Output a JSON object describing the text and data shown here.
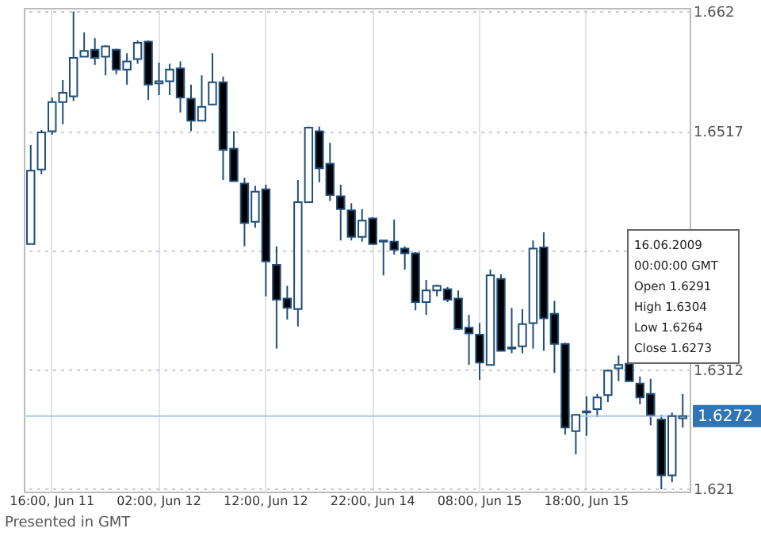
{
  "chart_data": {
    "type": "candlestick",
    "categories": [
      null,
      null,
      "16:00, Jun 11",
      null,
      null,
      null,
      null,
      null,
      null,
      null,
      null,
      null,
      "02:00, Jun 12",
      null,
      null,
      null,
      null,
      null,
      null,
      null,
      null,
      null,
      "12:00, Jun 12",
      null,
      null,
      null,
      null,
      null,
      null,
      null,
      null,
      null,
      "22:00, Jun 14",
      null,
      null,
      null,
      null,
      null,
      null,
      null,
      null,
      null,
      "08:00, Jun 15",
      null,
      null,
      null,
      null,
      null,
      null,
      null,
      null,
      null,
      "18:00, Jun 15",
      null,
      null,
      null,
      null,
      null,
      null,
      null,
      null,
      null
    ],
    "ohlc": [
      [
        1.642,
        1.6505,
        1.642,
        1.6483
      ],
      [
        1.6484,
        1.6518,
        1.648,
        1.6516
      ],
      [
        1.6517,
        1.6546,
        1.6514,
        1.6542
      ],
      [
        1.6542,
        1.6561,
        1.6523,
        1.655
      ],
      [
        1.6547,
        1.662,
        1.6543,
        1.658
      ],
      [
        1.6581,
        1.6602,
        1.6581,
        1.6586
      ],
      [
        1.6587,
        1.6597,
        1.6574,
        1.658
      ],
      [
        1.6581,
        1.6591,
        1.6565,
        1.659
      ],
      [
        1.6587,
        1.6588,
        1.6566,
        1.657
      ],
      [
        1.657,
        1.6584,
        1.6557,
        1.6577
      ],
      [
        1.6579,
        1.6595,
        1.6575,
        1.6593
      ],
      [
        1.6594,
        1.6595,
        1.6544,
        1.6557
      ],
      [
        1.6558,
        1.6576,
        1.6548,
        1.656
      ],
      [
        1.656,
        1.6575,
        1.6548,
        1.657
      ],
      [
        1.6571,
        1.6577,
        1.6533,
        1.6546
      ],
      [
        1.6545,
        1.6557,
        1.6517,
        1.6526
      ],
      [
        1.6526,
        1.6565,
        1.6526,
        1.6538
      ],
      [
        1.654,
        1.6584,
        1.654,
        1.6559
      ],
      [
        1.6559,
        1.6564,
        1.6475,
        1.6501
      ],
      [
        1.6502,
        1.6517,
        1.6474,
        1.6474
      ],
      [
        1.6472,
        1.6477,
        1.6418,
        1.6438
      ],
      [
        1.6439,
        1.647,
        1.6434,
        1.6465
      ],
      [
        1.6467,
        1.6471,
        1.6375,
        1.6405
      ],
      [
        1.6402,
        1.6418,
        1.633,
        1.6372
      ],
      [
        1.6373,
        1.6384,
        1.6355,
        1.6365
      ],
      [
        1.6364,
        1.6475,
        1.6349,
        1.6456
      ],
      [
        1.6456,
        1.6521,
        1.6456,
        1.652
      ],
      [
        1.6517,
        1.6521,
        1.6473,
        1.6485
      ],
      [
        1.6489,
        1.6507,
        1.6457,
        1.6462
      ],
      [
        1.6461,
        1.6471,
        1.6423,
        1.645
      ],
      [
        1.6449,
        1.6455,
        1.6423,
        1.6426
      ],
      [
        1.6426,
        1.645,
        1.6422,
        1.644
      ],
      [
        1.6442,
        1.6443,
        1.642,
        1.642
      ],
      [
        1.6423,
        1.6423,
        1.6393,
        1.6422
      ],
      [
        1.6422,
        1.6441,
        1.6411,
        1.6415
      ],
      [
        1.6416,
        1.6418,
        1.6398,
        1.6412
      ],
      [
        1.6412,
        1.6413,
        1.6363,
        1.637
      ],
      [
        1.637,
        1.6389,
        1.6359,
        1.638
      ],
      [
        1.638,
        1.6385,
        1.6375,
        1.6384
      ],
      [
        1.6381,
        1.6383,
        1.637,
        1.6372
      ],
      [
        1.6373,
        1.638,
        1.6346,
        1.6347
      ],
      [
        1.6348,
        1.6359,
        1.6316,
        1.6343
      ],
      [
        1.6342,
        1.6352,
        1.6303,
        1.6318
      ],
      [
        1.6316,
        1.6398,
        1.6316,
        1.6393
      ],
      [
        1.639,
        1.6394,
        1.6328,
        1.6328
      ],
      [
        1.633,
        1.6365,
        1.6326,
        1.6331
      ],
      [
        1.6332,
        1.6364,
        1.6326,
        1.6351
      ],
      [
        1.6352,
        1.6423,
        1.633,
        1.6416
      ],
      [
        1.6417,
        1.643,
        1.6328,
        1.6356
      ],
      [
        1.636,
        1.6371,
        1.6309,
        1.6334
      ],
      [
        1.6334,
        1.6335,
        1.6256,
        1.6262
      ],
      [
        1.6259,
        1.6273,
        1.6239,
        1.6273
      ],
      [
        1.6275,
        1.6289,
        1.6255,
        1.6276
      ],
      [
        1.6278,
        1.6291,
        1.6271,
        1.6288
      ],
      [
        1.629,
        1.6312,
        1.6284,
        1.6311
      ],
      [
        1.6313,
        1.6324,
        1.6302,
        1.6316
      ],
      [
        1.6317,
        1.6318,
        1.6302,
        1.6302
      ],
      [
        1.63,
        1.6306,
        1.6282,
        1.6288
      ],
      [
        1.6291,
        1.6304,
        1.6264,
        1.6273
      ],
      [
        1.6269,
        1.6273,
        1.6209,
        1.6221
      ],
      [
        1.6221,
        1.6275,
        1.6215,
        1.6272
      ],
      [
        1.627,
        1.6291,
        1.6262,
        1.6272
      ]
    ],
    "ylim": [
      1.6207,
      1.6623
    ],
    "yticks": [
      1.621,
      1.6312,
      {
        "value": 1.6415,
        "label": null
      },
      1.6517,
      1.662
    ],
    "grid": true,
    "ref_lines": [
      {
        "axis": "y",
        "value": 1.6272,
        "label": "1.6272",
        "color": "#a9c8e8"
      }
    ],
    "annotations": [
      "16.06.2009",
      "00:00:00 GMT",
      "Open 1.6291",
      "High 1.6304",
      "Low 1.6264",
      "Close 1.6273",
      "Presented in GMT"
    ]
  }
}
